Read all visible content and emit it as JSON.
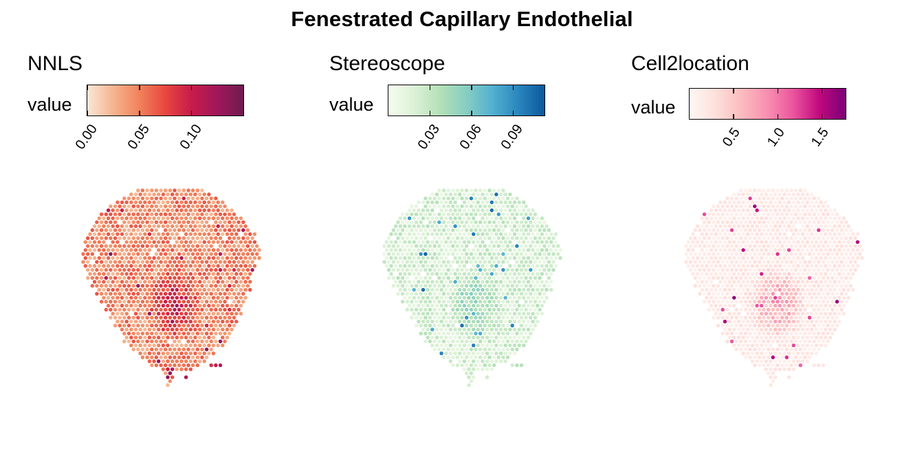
{
  "chart_data": [
    {
      "type": "scatter",
      "subtype": "spatial-spot-map",
      "title": "NNLS",
      "legend_title": "value",
      "legend_placement": "top",
      "colorscale": [
        "#fbe6d6",
        "#f5b48f",
        "#f1825c",
        "#e8473f",
        "#c71c4a",
        "#a0175a",
        "#6f1c51"
      ],
      "value_range": [
        0.0,
        0.149
      ],
      "ticks": [
        0.0,
        0.05,
        0.1
      ],
      "tick_labels": [
        "0.00",
        "0.05",
        "0.10"
      ],
      "background_level": 0.045,
      "background_spread": 0.025,
      "hotspot_level": 0.1,
      "hotspot_spread": 0.03,
      "seed": 11
    },
    {
      "type": "scatter",
      "subtype": "spatial-spot-map",
      "title": "Stereoscope",
      "legend_title": "value",
      "legend_placement": "top",
      "colorscale": [
        "#f7fcf0",
        "#dcf1d6",
        "#b3e0b7",
        "#86cec2",
        "#52b0d0",
        "#2a86bc",
        "#0b589e"
      ],
      "value_range": [
        0.0,
        0.112
      ],
      "ticks": [
        0.03,
        0.06,
        0.09
      ],
      "tick_labels": [
        "0.03",
        "0.06",
        "0.09"
      ],
      "background_level": 0.022,
      "background_spread": 0.014,
      "hotspot_level": 0.05,
      "hotspot_spread": 0.018,
      "seed": 23
    },
    {
      "type": "scatter",
      "subtype": "spatial-spot-map",
      "title": "Cell2location",
      "legend_title": "value",
      "legend_placement": "top",
      "colorscale": [
        "#fff7f3",
        "#fde0dc",
        "#fbbcbe",
        "#f88fb0",
        "#ea539d",
        "#c0087d",
        "#7a0177"
      ],
      "value_range": [
        0.0,
        1.76
      ],
      "ticks": [
        0.5,
        1.0,
        1.5
      ],
      "tick_labels": [
        "0.5",
        "1.0",
        "1.5"
      ],
      "background_level": 0.18,
      "background_spread": 0.12,
      "hotspot_level": 0.85,
      "hotspot_spread": 0.35,
      "seed": 37
    }
  ],
  "figure": {
    "title": "Fenestrated Capillary Endothelial"
  },
  "tissue_grid": {
    "rows": 50,
    "row_extents": [
      [
        12,
        26
      ],
      [
        10,
        27
      ],
      [
        9,
        29
      ],
      [
        7,
        30
      ],
      [
        6,
        31
      ],
      [
        5,
        32
      ],
      [
        4,
        33
      ],
      [
        3,
        34
      ],
      [
        3,
        35
      ],
      [
        2,
        35
      ],
      [
        2,
        36
      ],
      [
        1,
        37
      ],
      [
        1,
        37
      ],
      [
        0,
        37
      ],
      [
        0,
        38
      ],
      [
        0,
        38
      ],
      [
        0,
        38
      ],
      [
        0,
        38
      ],
      [
        0,
        37
      ],
      [
        0,
        37
      ],
      [
        1,
        37
      ],
      [
        1,
        36
      ],
      [
        1,
        36
      ],
      [
        2,
        36
      ],
      [
        2,
        36
      ],
      [
        3,
        36
      ],
      [
        3,
        35
      ],
      [
        4,
        35
      ],
      [
        4,
        35
      ],
      [
        5,
        34
      ],
      [
        5,
        34
      ],
      [
        6,
        34
      ],
      [
        6,
        33
      ],
      [
        7,
        33
      ],
      [
        7,
        33
      ],
      [
        8,
        32
      ],
      [
        8,
        32
      ],
      [
        9,
        31
      ],
      [
        9,
        31
      ],
      [
        10,
        30
      ],
      [
        11,
        29
      ],
      [
        12,
        28
      ],
      [
        13,
        27
      ],
      [
        14,
        26
      ],
      [
        15,
        25
      ],
      [
        17,
        23
      ],
      [
        18,
        19
      ],
      [
        18,
        19
      ],
      [
        19,
        19
      ],
      [
        18,
        18
      ]
    ],
    "hotspot_rows": [
      19,
      38
    ],
    "hotspot_cols": [
      13,
      26
    ],
    "offgrid_spots": [
      {
        "row": 44,
        "col": 28,
        "level": "high"
      },
      {
        "row": 44,
        "col": 29,
        "level": "high"
      },
      {
        "row": 44,
        "col": 30,
        "level": "high"
      },
      {
        "row": 45,
        "col": 18,
        "level": "high"
      },
      {
        "row": 45,
        "col": 19,
        "level": "high"
      },
      {
        "row": 46,
        "col": 19,
        "level": "high"
      },
      {
        "row": 47,
        "col": 22,
        "level": "high"
      }
    ]
  }
}
